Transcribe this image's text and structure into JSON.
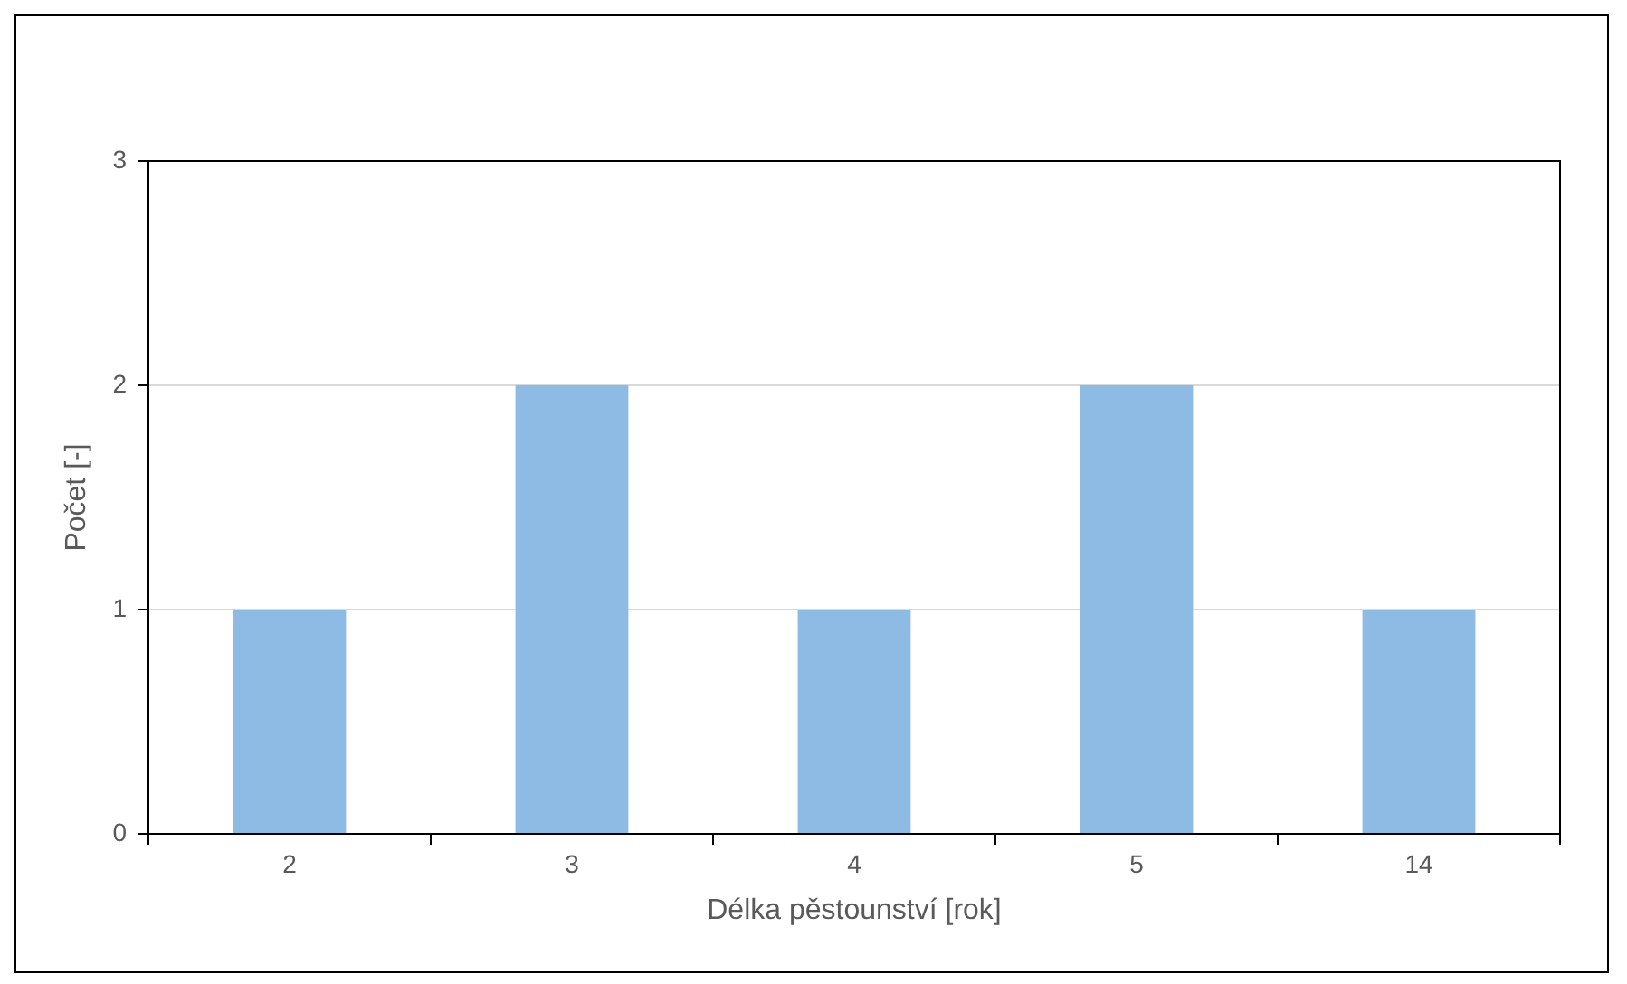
{
  "chart_data": {
    "type": "bar",
    "xlabel": "Délka pěstounství [rok]",
    "ylabel": "Počet [-]",
    "categories": [
      "2",
      "3",
      "4",
      "5",
      "14"
    ],
    "values": [
      1,
      2,
      1,
      2,
      1
    ],
    "color": "#8dbbe3",
    "ylim": [
      0,
      3
    ],
    "yticks": [
      0,
      1,
      2,
      3
    ],
    "grid": "y",
    "legend": false
  }
}
